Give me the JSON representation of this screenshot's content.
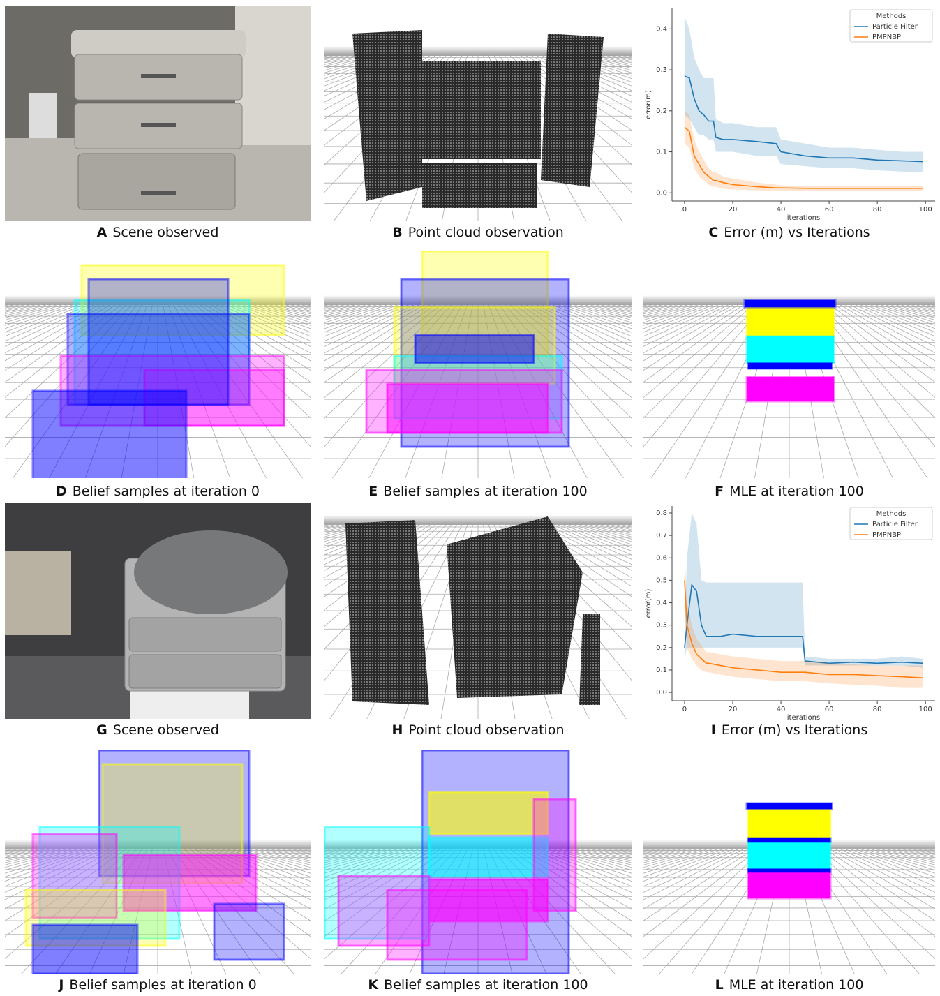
{
  "panels": [
    {
      "letter": "A",
      "caption": "Scene observed"
    },
    {
      "letter": "B",
      "caption": "Point cloud observation"
    },
    {
      "letter": "C",
      "caption": "Error (m) vs Iterations"
    },
    {
      "letter": "D",
      "caption": "Belief samples at iteration 0"
    },
    {
      "letter": "E",
      "caption": "Belief samples at iteration 100"
    },
    {
      "letter": "F",
      "caption": "MLE at iteration 100"
    },
    {
      "letter": "G",
      "caption": "Scene observed"
    },
    {
      "letter": "H",
      "caption": "Point cloud observation"
    },
    {
      "letter": "I",
      "caption": "Error (m) vs Iterations"
    },
    {
      "letter": "J",
      "caption": "Belief samples at iteration 0"
    },
    {
      "letter": "K",
      "caption": "Belief samples at iteration 100"
    },
    {
      "letter": "L",
      "caption": "MLE at iteration 100"
    }
  ],
  "chart_data": [
    {
      "type": "line",
      "xlabel": "iterations",
      "ylabel": "error(m)",
      "legend_title": "Methods",
      "legend": "upper right",
      "x": [
        0,
        2,
        4,
        6,
        8,
        10,
        12,
        13,
        16,
        20,
        30,
        38,
        40,
        50,
        60,
        70,
        80,
        90,
        99
      ],
      "series": [
        {
          "name": "Particle Filter",
          "color": "#1f77b4",
          "values": [
            0.285,
            0.28,
            0.23,
            0.2,
            0.19,
            0.175,
            0.175,
            0.135,
            0.13,
            0.13,
            0.125,
            0.12,
            0.1,
            0.09,
            0.085,
            0.085,
            0.08,
            0.078,
            0.076
          ],
          "lower": [
            0.19,
            0.18,
            0.16,
            0.14,
            0.14,
            0.13,
            0.13,
            0.1,
            0.1,
            0.1,
            0.09,
            0.09,
            0.07,
            0.065,
            0.06,
            0.06,
            0.055,
            0.052,
            0.05
          ],
          "upper": [
            0.43,
            0.4,
            0.33,
            0.3,
            0.28,
            0.28,
            0.28,
            0.18,
            0.17,
            0.17,
            0.16,
            0.16,
            0.13,
            0.12,
            0.11,
            0.11,
            0.105,
            0.1,
            0.1
          ]
        },
        {
          "name": "PMPNBP",
          "color": "#ff7f0e",
          "values": [
            0.16,
            0.15,
            0.09,
            0.07,
            0.05,
            0.04,
            0.03,
            0.03,
            0.025,
            0.02,
            0.015,
            0.012,
            0.012,
            0.011,
            0.011,
            0.011,
            0.011,
            0.011,
            0.011
          ],
          "lower": [
            0.12,
            0.11,
            0.06,
            0.04,
            0.03,
            0.02,
            0.015,
            0.015,
            0.01,
            0.008,
            0.006,
            0.005,
            0.005,
            0.005,
            0.005,
            0.005,
            0.005,
            0.005,
            0.005
          ],
          "upper": [
            0.2,
            0.19,
            0.13,
            0.1,
            0.08,
            0.06,
            0.05,
            0.05,
            0.04,
            0.035,
            0.025,
            0.02,
            0.018,
            0.017,
            0.017,
            0.017,
            0.017,
            0.017,
            0.017
          ]
        }
      ],
      "xlim": [
        -5.2,
        104
      ],
      "ylim": [
        -0.02,
        0.45
      ],
      "xticks": [
        0,
        20,
        40,
        60,
        80,
        100
      ],
      "yticks": [
        {
          "value": 0,
          "label": "0.0"
        },
        0.1,
        0.2,
        0.3,
        0.4
      ]
    },
    {
      "type": "line",
      "xlabel": "iterations",
      "ylabel": "error(m)",
      "legend_title": "Methods",
      "legend": "upper right",
      "x": [
        0,
        1,
        3,
        5,
        7,
        9,
        10,
        15,
        20,
        30,
        40,
        48,
        49,
        50,
        60,
        70,
        80,
        90,
        99
      ],
      "series": [
        {
          "name": "Particle Filter",
          "color": "#1f77b4",
          "values": [
            0.2,
            0.3,
            0.48,
            0.45,
            0.3,
            0.25,
            0.25,
            0.25,
            0.26,
            0.25,
            0.25,
            0.25,
            0.25,
            0.14,
            0.13,
            0.135,
            0.13,
            0.135,
            0.13
          ],
          "lower": [
            0.15,
            0.2,
            0.2,
            0.2,
            0.2,
            0.2,
            0.2,
            0.2,
            0.2,
            0.2,
            0.2,
            0.2,
            0.2,
            0.12,
            0.12,
            0.12,
            0.12,
            0.12,
            0.11
          ],
          "upper": [
            0.3,
            0.6,
            0.8,
            0.75,
            0.5,
            0.49,
            0.49,
            0.49,
            0.49,
            0.49,
            0.49,
            0.49,
            0.49,
            0.16,
            0.15,
            0.15,
            0.15,
            0.16,
            0.15
          ]
        },
        {
          "name": "PMPNBP",
          "color": "#ff7f0e",
          "values": [
            0.5,
            0.3,
            0.22,
            0.17,
            0.15,
            0.13,
            0.13,
            0.12,
            0.11,
            0.1,
            0.09,
            0.09,
            0.09,
            0.09,
            0.08,
            0.08,
            0.075,
            0.07,
            0.065
          ],
          "lower": [
            0.4,
            0.2,
            0.15,
            0.12,
            0.1,
            0.09,
            0.09,
            0.08,
            0.07,
            0.06,
            0.05,
            0.05,
            0.05,
            0.05,
            0.04,
            0.035,
            0.03,
            0.02,
            0.02
          ],
          "upper": [
            0.63,
            0.4,
            0.3,
            0.24,
            0.21,
            0.18,
            0.18,
            0.17,
            0.16,
            0.15,
            0.14,
            0.14,
            0.14,
            0.14,
            0.13,
            0.125,
            0.12,
            0.12,
            0.12
          ]
        }
      ],
      "xlim": [
        -5.2,
        104
      ],
      "ylim": [
        -0.037,
        0.831
      ],
      "xticks": [
        0,
        20,
        40,
        60,
        80,
        100
      ],
      "yticks": [
        {
          "value": 0,
          "label": "0.0"
        },
        0.1,
        0.2,
        0.3,
        0.4,
        0.5,
        0.6,
        0.7,
        0.8
      ]
    }
  ]
}
